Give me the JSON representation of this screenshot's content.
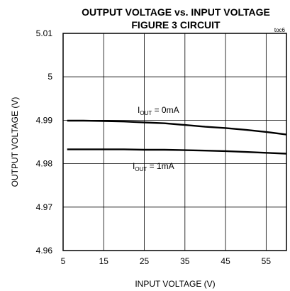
{
  "chart_data": {
    "type": "line",
    "title": "OUTPUT VOLTAGE vs. INPUT VOLTAGE",
    "subtitle": "FIGURE 3 CIRCUIT",
    "tag": "toc6",
    "xlabel": "INPUT VOLTAGE (V)",
    "ylabel": "OUTPUT VOLTAGE (V)",
    "xlim": [
      5,
      60
    ],
    "ylim": [
      4.96,
      5.01
    ],
    "x_ticks": [
      "5",
      "15",
      "25",
      "35",
      "45",
      "55"
    ],
    "y_ticks": [
      "4.96",
      "4.97",
      "4.98",
      "4.99",
      "5",
      "5.01"
    ],
    "grid": true,
    "series": [
      {
        "name": "I_OUT = 0mA",
        "label_main": "I",
        "label_sub": "OUT",
        "label_rest": " = 0mA",
        "x": [
          6,
          10,
          15,
          20,
          25,
          30,
          35,
          40,
          45,
          50,
          55,
          60
        ],
        "y": [
          4.9899,
          4.9899,
          4.9898,
          4.9897,
          4.9895,
          4.9893,
          4.9889,
          4.9885,
          4.9882,
          4.9878,
          4.9873,
          4.9867
        ]
      },
      {
        "name": "I_OUT = 1mA",
        "label_main": "I",
        "label_sub": "OUT",
        "label_rest": " = 1mA",
        "x": [
          6,
          10,
          15,
          20,
          25,
          30,
          35,
          40,
          45,
          50,
          55,
          60
        ],
        "y": [
          4.9833,
          4.9833,
          4.9833,
          4.9833,
          4.9832,
          4.9832,
          4.9831,
          4.983,
          4.9829,
          4.9827,
          4.9825,
          4.9823
        ]
      }
    ]
  }
}
